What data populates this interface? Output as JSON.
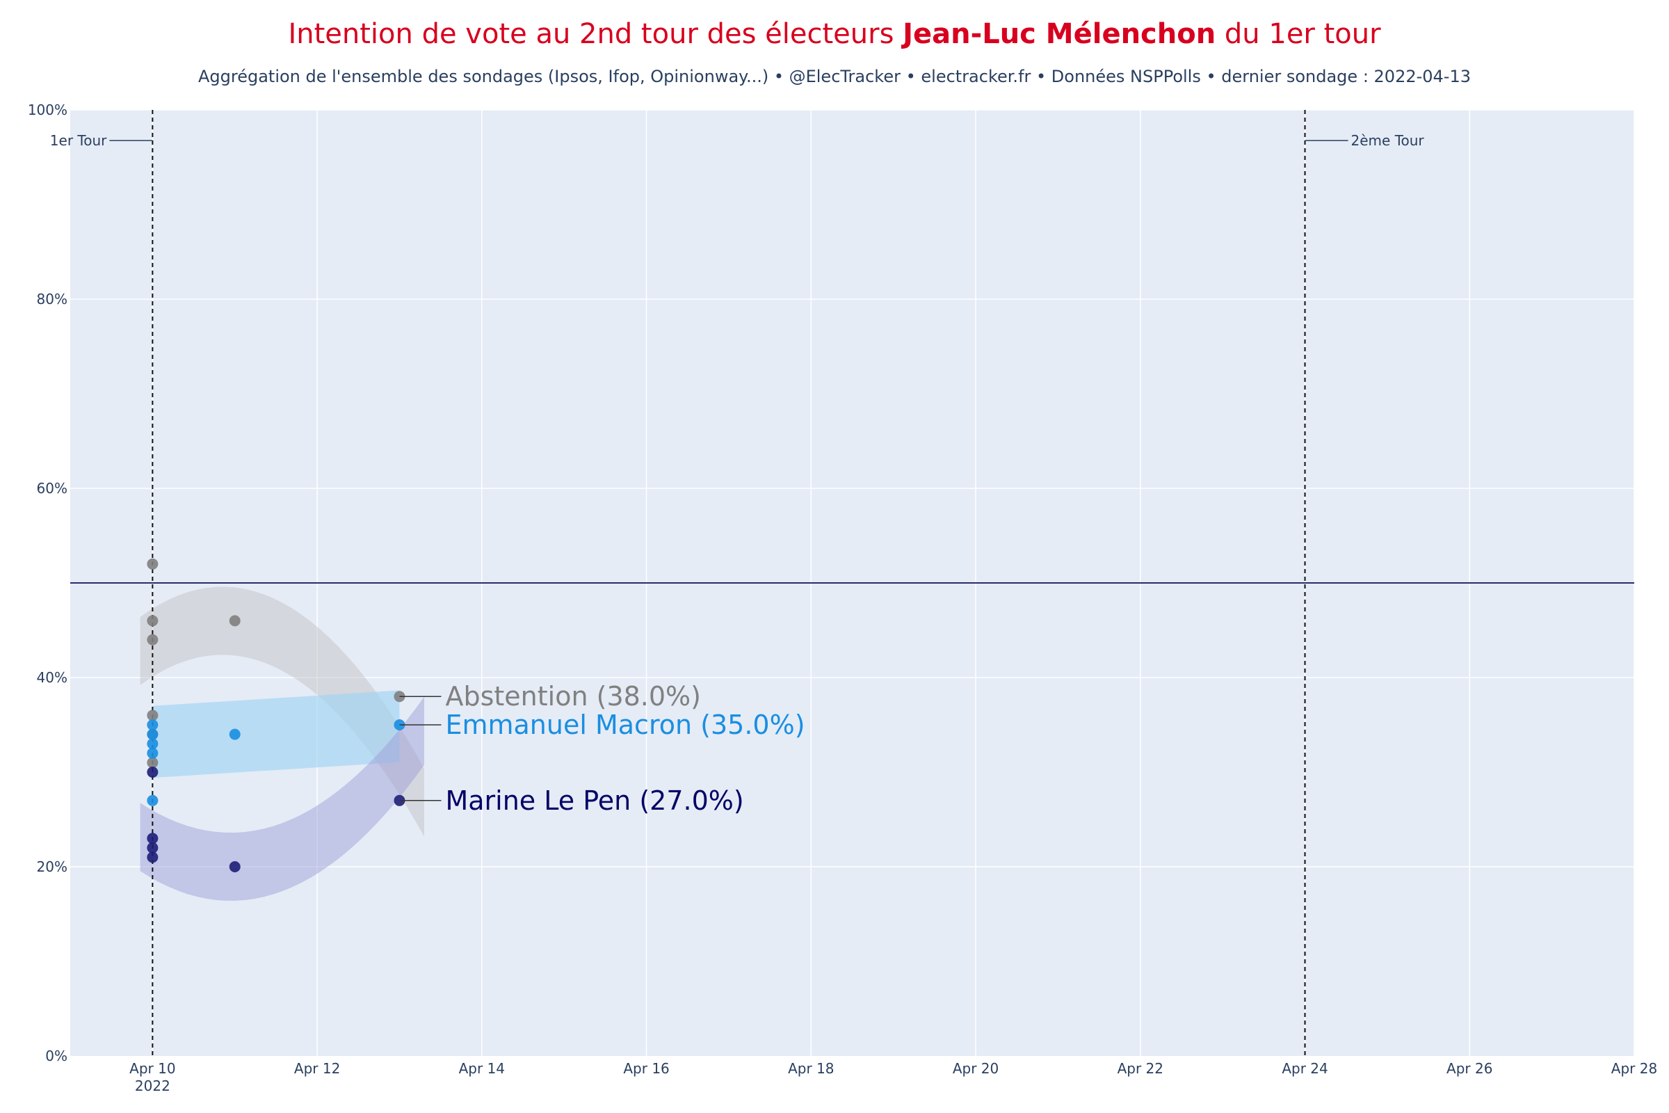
{
  "header": {
    "title_pre": "Intention de vote au 2nd tour des électeurs ",
    "title_bold": "Jean-Luc Mélenchon",
    "title_post": " du 1er tour",
    "subtitle": "Aggrégation de l'ensemble des sondages (Ipsos, Ifop, Opinionway...) • @ElecTracker • electracker.fr • Données NSPPolls • dernier sondage : 2022-04-13"
  },
  "colors": {
    "title": "#d8001e",
    "plot_bg": "#e5ecf6",
    "grid": "#ffffff",
    "text": "#2a3f5f",
    "abstention": "#808080",
    "macron": "#1a8ee1",
    "lepen": "#1e1e78",
    "lepen_label": "#040466"
  },
  "chart_data": {
    "type": "scatter",
    "x_range": [
      "2022-04-09",
      "2022-04-28"
    ],
    "ylim": [
      0,
      100
    ],
    "y_ticks": [
      {
        "v": 0,
        "label": "0%"
      },
      {
        "v": 20,
        "label": "20%"
      },
      {
        "v": 40,
        "label": "40%"
      },
      {
        "v": 60,
        "label": "60%"
      },
      {
        "v": 80,
        "label": "80%"
      },
      {
        "v": 100,
        "label": "100%"
      }
    ],
    "x_ticks": [
      {
        "date": "2022-04-10",
        "label": "Apr 10",
        "sub": "2022"
      },
      {
        "date": "2022-04-12",
        "label": "Apr 12"
      },
      {
        "date": "2022-04-14",
        "label": "Apr 14"
      },
      {
        "date": "2022-04-16",
        "label": "Apr 16"
      },
      {
        "date": "2022-04-18",
        "label": "Apr 18"
      },
      {
        "date": "2022-04-20",
        "label": "Apr 20"
      },
      {
        "date": "2022-04-22",
        "label": "Apr 22"
      },
      {
        "date": "2022-04-24",
        "label": "Apr 24"
      },
      {
        "date": "2022-04-26",
        "label": "Apr 26"
      },
      {
        "date": "2022-04-28",
        "label": "Apr 28"
      }
    ],
    "hline": 50,
    "vlines": [
      {
        "date": "2022-04-10",
        "label": "1er Tour",
        "side": "left"
      },
      {
        "date": "2022-04-24",
        "label": "2ème Tour",
        "side": "right"
      }
    ],
    "series": [
      {
        "name": "Abstention",
        "key": "abstention",
        "points": [
          {
            "x": "2022-04-10",
            "y": 52
          },
          {
            "x": "2022-04-10",
            "y": 46
          },
          {
            "x": "2022-04-10",
            "y": 44
          },
          {
            "x": "2022-04-10",
            "y": 36
          },
          {
            "x": "2022-04-10",
            "y": 34
          },
          {
            "x": "2022-04-10",
            "y": 31
          },
          {
            "x": "2022-04-11",
            "y": 46
          },
          {
            "x": "2022-04-13",
            "y": 38
          }
        ],
        "final": 38,
        "final_label": "Abstention (38.0%)"
      },
      {
        "name": "Emmanuel Macron",
        "key": "macron",
        "points": [
          {
            "x": "2022-04-10",
            "y": 35
          },
          {
            "x": "2022-04-10",
            "y": 34
          },
          {
            "x": "2022-04-10",
            "y": 33
          },
          {
            "x": "2022-04-10",
            "y": 32
          },
          {
            "x": "2022-04-10",
            "y": 27
          },
          {
            "x": "2022-04-11",
            "y": 34
          },
          {
            "x": "2022-04-13",
            "y": 35
          }
        ],
        "final": 35,
        "final_label": "Emmanuel Macron (35.0%)"
      },
      {
        "name": "Marine Le Pen",
        "key": "lepen",
        "points": [
          {
            "x": "2022-04-10",
            "y": 30
          },
          {
            "x": "2022-04-10",
            "y": 23
          },
          {
            "x": "2022-04-10",
            "y": 22
          },
          {
            "x": "2022-04-10",
            "y": 21
          },
          {
            "x": "2022-04-11",
            "y": 20
          },
          {
            "x": "2022-04-13",
            "y": 27
          }
        ],
        "final": 27,
        "final_label": "Marine Le Pen (27.0%)"
      }
    ]
  }
}
